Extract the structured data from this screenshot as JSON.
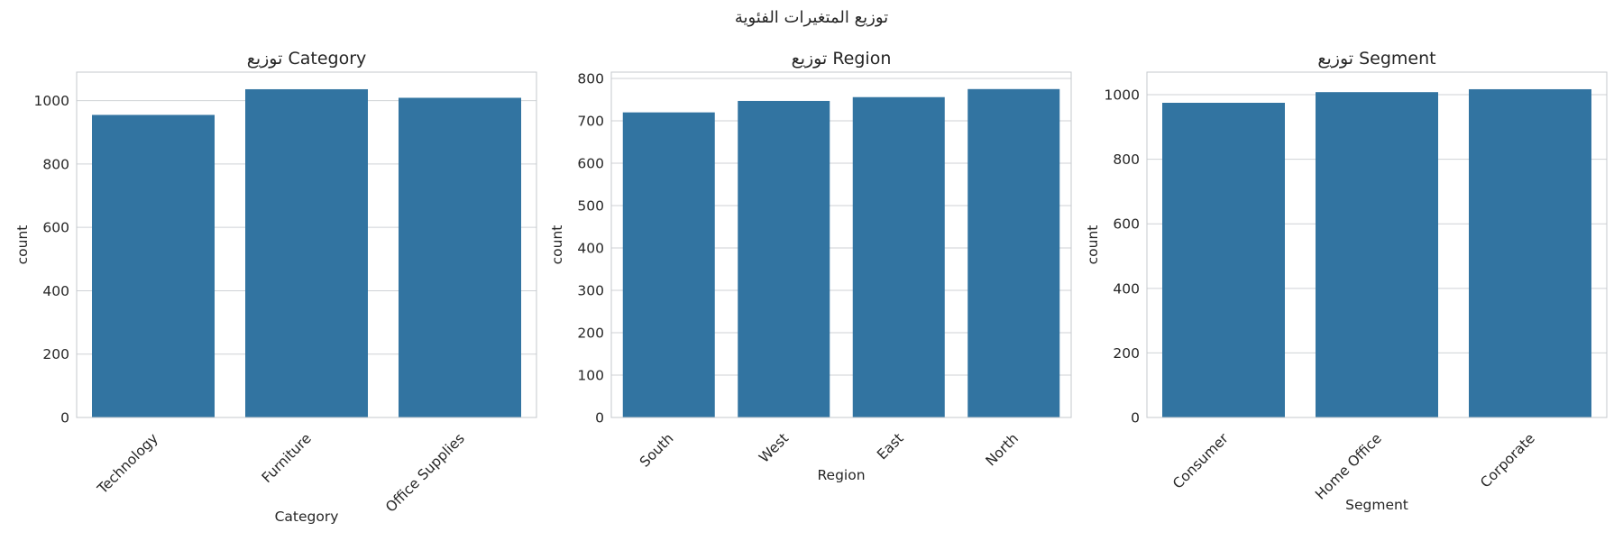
{
  "suptitle": "توزيع المتغيرات الفئوية",
  "colors": {
    "bar": "#3274a1",
    "grid": "#cfd2d6",
    "frame": "#c4c8cc"
  },
  "chart_data": [
    {
      "type": "bar",
      "title": "توزيع Category",
      "xlabel": "Category",
      "ylabel": "count",
      "categories": [
        "Technology",
        "Furniture",
        "Office Supplies"
      ],
      "values": [
        955,
        1036,
        1009
      ],
      "ylim": [
        0,
        1090
      ],
      "yticks": [
        0,
        200,
        400,
        600,
        800,
        1000
      ],
      "grid": true,
      "xtick_rotation": 45
    },
    {
      "type": "bar",
      "title": "توزيع Region",
      "xlabel": "Region",
      "ylabel": "count",
      "categories": [
        "South",
        "West",
        "East",
        "North"
      ],
      "values": [
        720,
        747,
        756,
        775
      ],
      "ylim": [
        0,
        815
      ],
      "yticks": [
        0,
        100,
        200,
        300,
        400,
        500,
        600,
        700,
        800
      ],
      "grid": true,
      "xtick_rotation": 45
    },
    {
      "type": "bar",
      "title": "توزيع Segment",
      "xlabel": "Segment",
      "ylabel": "count",
      "categories": [
        "Consumer",
        "Home Office",
        "Corporate"
      ],
      "values": [
        975,
        1008,
        1017
      ],
      "ylim": [
        0,
        1070
      ],
      "yticks": [
        0,
        200,
        400,
        600,
        800,
        1000
      ],
      "grid": true,
      "xtick_rotation": 45
    }
  ]
}
